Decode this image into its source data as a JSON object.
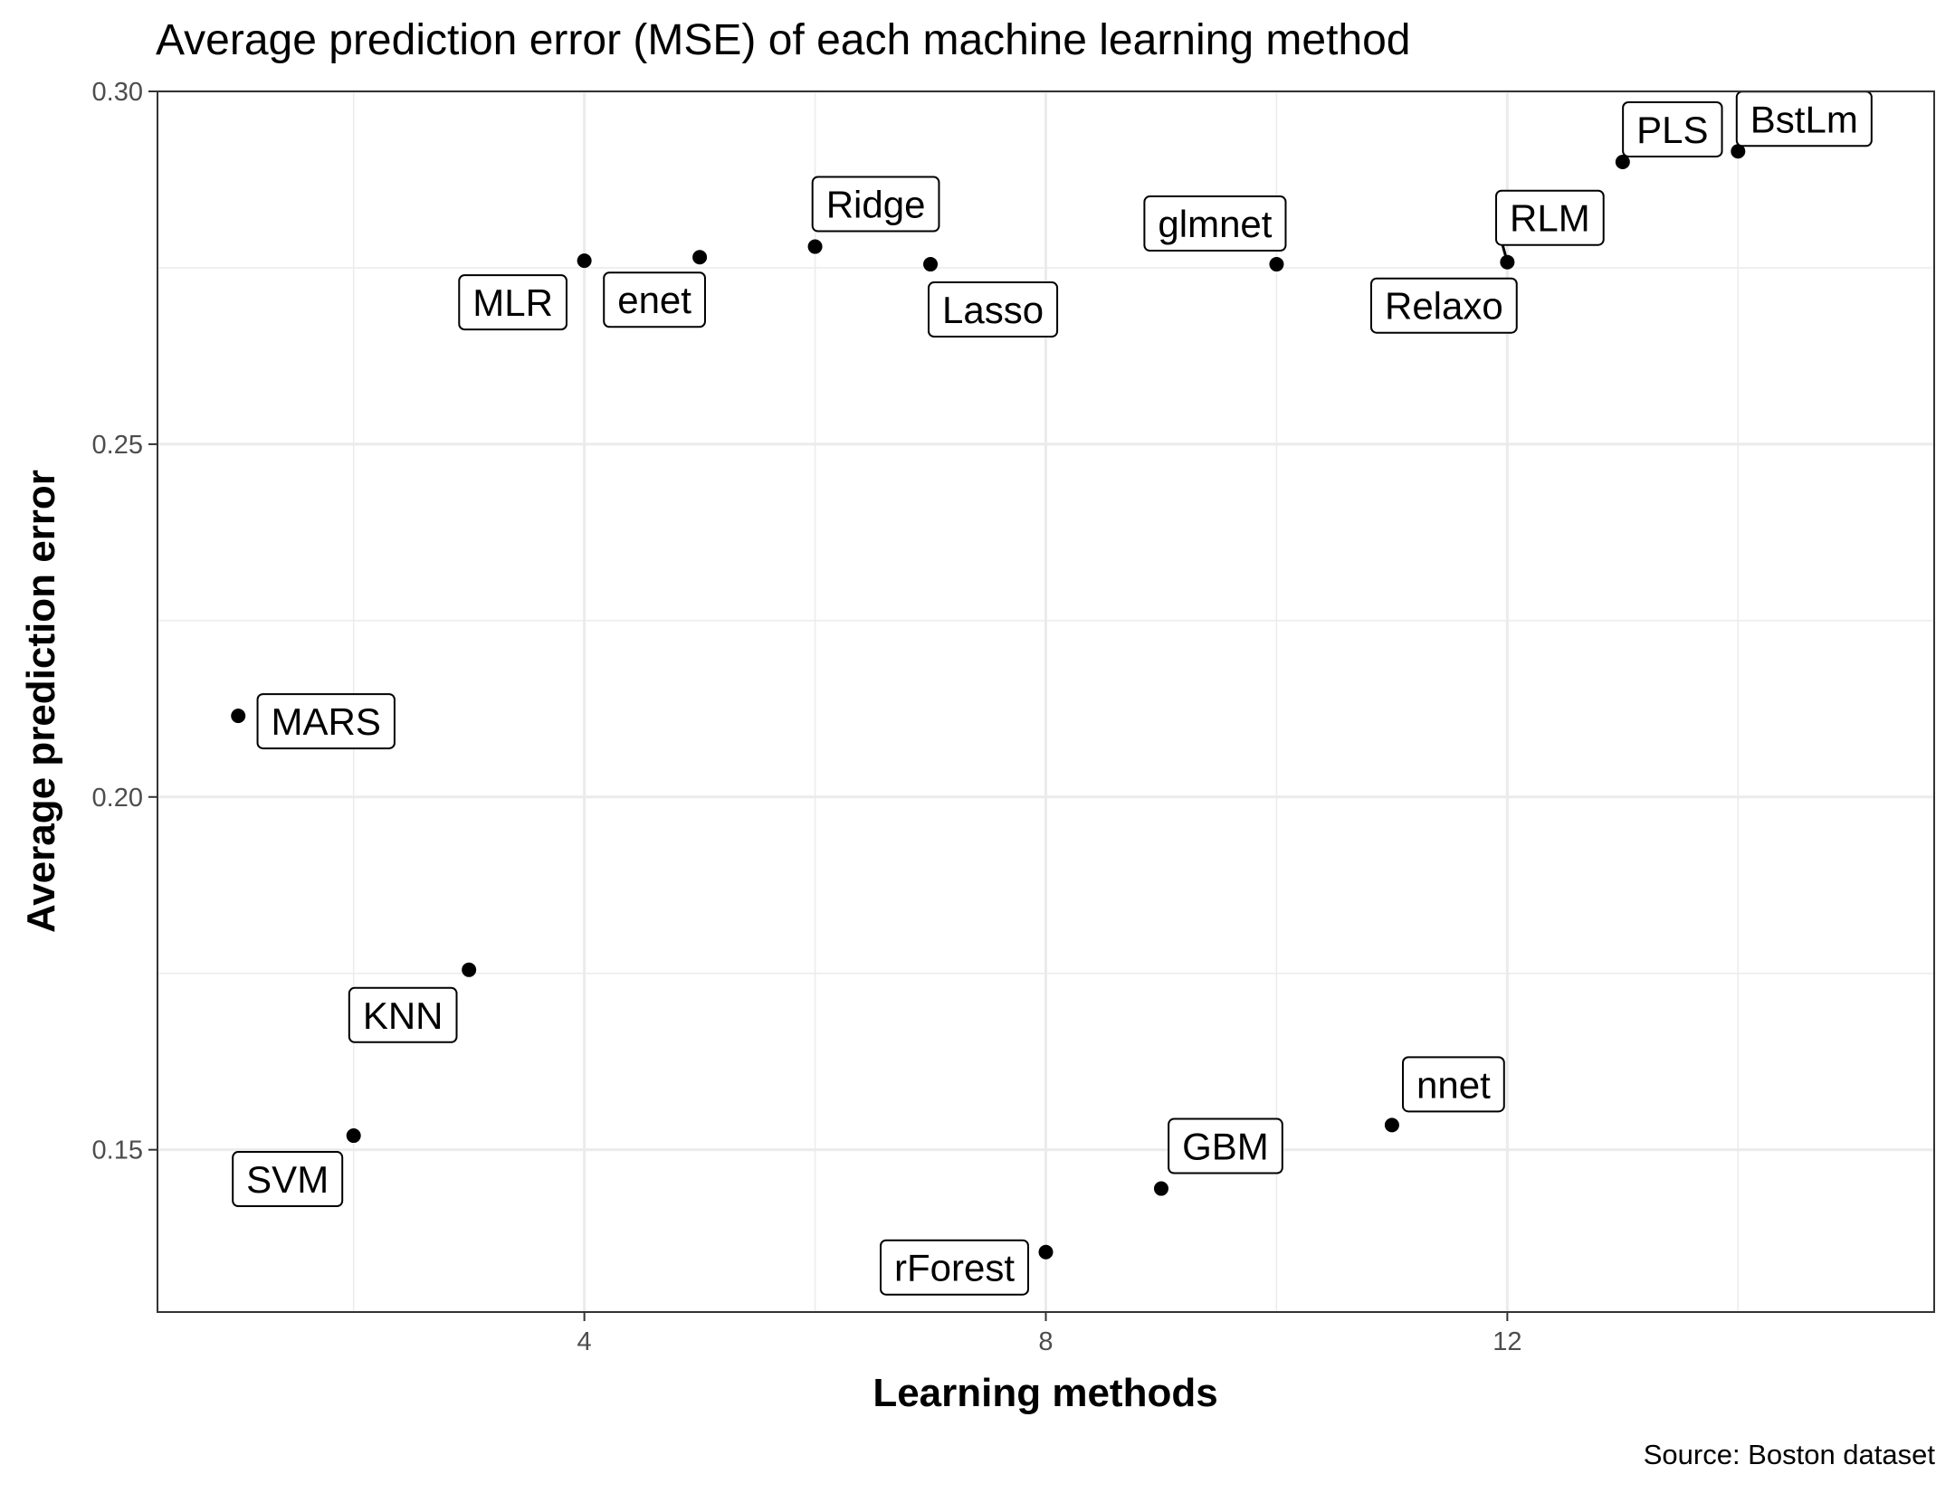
{
  "chart_data": {
    "type": "scatter",
    "title": "Average prediction error (MSE) of each machine learning method",
    "xlabel": "Learning methods",
    "ylabel": "Average prediction error",
    "caption": "Source: Boston dataset",
    "xlim": [
      0.3,
      15.7
    ],
    "ylim": [
      0.127,
      0.3
    ],
    "x_ticks": [
      4,
      8,
      12
    ],
    "x_tick_labels": [
      "4",
      "8",
      "12"
    ],
    "y_ticks": [
      0.15,
      0.2,
      0.25,
      0.3
    ],
    "y_tick_labels": [
      "0.15",
      "0.20",
      "0.25",
      "0.30"
    ],
    "grid": true,
    "points": [
      {
        "label": "MARS",
        "x": 1,
        "y": 0.2115
      },
      {
        "label": "SVM",
        "x": 2,
        "y": 0.152
      },
      {
        "label": "KNN",
        "x": 3,
        "y": 0.1755
      },
      {
        "label": "MLR",
        "x": 4,
        "y": 0.276
      },
      {
        "label": "enet",
        "x": 5,
        "y": 0.2765
      },
      {
        "label": "Ridge",
        "x": 6,
        "y": 0.278
      },
      {
        "label": "Lasso",
        "x": 7,
        "y": 0.2755
      },
      {
        "label": "rForest",
        "x": 8,
        "y": 0.1355
      },
      {
        "label": "GBM",
        "x": 9,
        "y": 0.1445
      },
      {
        "label": "glmnet",
        "x": 10,
        "y": 0.2755
      },
      {
        "label": "nnet",
        "x": 11,
        "y": 0.1535
      },
      {
        "label": "Relaxo",
        "x": 12,
        "y": 0.2758
      },
      {
        "label": "RLM",
        "x": 12,
        "y": 0.2758
      },
      {
        "label": "PLS",
        "x": 13,
        "y": 0.29
      },
      {
        "label": "BstLm",
        "x": 14,
        "y": 0.2915
      }
    ]
  }
}
